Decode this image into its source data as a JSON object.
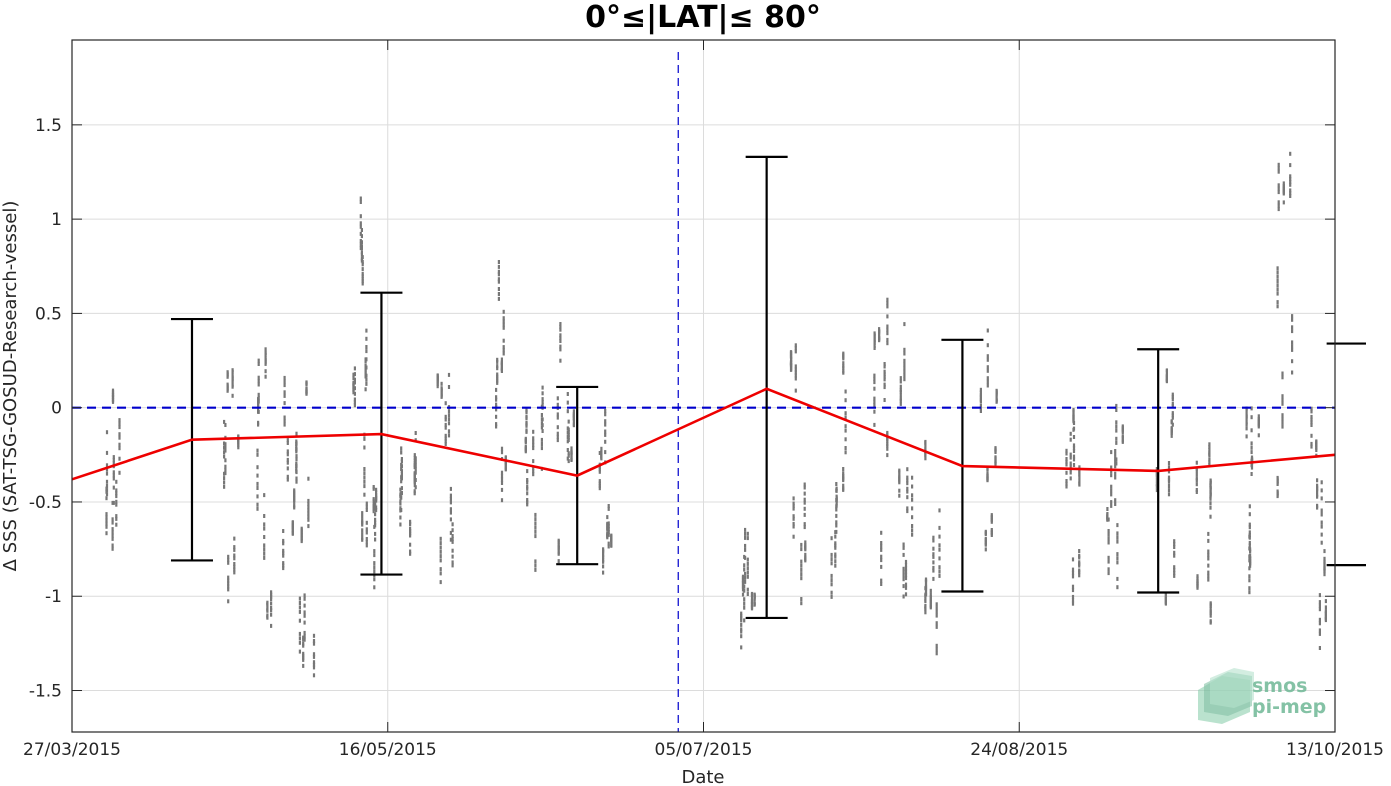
{
  "chart_data": {
    "type": "scatter",
    "title": "0°≤|LAT|≤ 80°",
    "xlabel": "Date",
    "ylabel": "Δ SSS (SAT-TSG-GOSUD-Research-vessel)",
    "x_is_date": true,
    "xlim": [
      "2015-03-27",
      "2015-10-13"
    ],
    "ylim": [
      -1.72,
      1.95
    ],
    "x_ticks": [
      "2015-03-27",
      "2015-05-16",
      "2015-07-05",
      "2015-08-24",
      "2015-10-13"
    ],
    "x_tick_labels": [
      "27/03/2015",
      "16/05/2015",
      "05/07/2015",
      "24/08/2015",
      "13/10/2015"
    ],
    "y_ticks": [
      -1.5,
      -1,
      -0.5,
      0,
      0.5,
      1,
      1.5
    ],
    "y_tick_labels": [
      "-1.5",
      "-1",
      "-0.5",
      "0",
      "0.5",
      "1",
      "1.5"
    ],
    "grid": true,
    "zero_line": {
      "y": 0,
      "color": "#0000cc",
      "style": "dashed"
    },
    "vertical_marker": {
      "x": "2015-07-01",
      "color": "#0000cc",
      "style": "dashed"
    },
    "mean_line": {
      "color": "#ee0000",
      "x": [
        "2015-03-27",
        "2015-04-15",
        "2015-05-15",
        "2015-06-15",
        "2015-07-15",
        "2015-08-15",
        "2015-09-15",
        "2015-10-13"
      ],
      "y": [
        -0.38,
        -0.17,
        -0.14,
        -0.36,
        0.1,
        -0.31,
        -0.335,
        -0.25
      ]
    },
    "error_bars": {
      "color": "#000000",
      "x": [
        "2015-04-15",
        "2015-05-15",
        "2015-06-15",
        "2015-07-15",
        "2015-08-15",
        "2015-09-15",
        "2015-10-15"
      ],
      "low": [
        -0.81,
        -0.885,
        -0.83,
        -1.115,
        -0.975,
        -0.98,
        -0.835
      ],
      "high": [
        0.47,
        0.61,
        0.11,
        1.33,
        0.36,
        0.31,
        0.34
      ]
    },
    "scatter": {
      "color": "#777777",
      "clusters": [
        {
          "x": "2015-04-02",
          "center": -0.15,
          "spread": 0.55
        },
        {
          "x": "2015-04-21",
          "center": -0.3,
          "spread": 0.6
        },
        {
          "x": "2015-04-26",
          "center": -0.35,
          "spread": 0.75
        },
        {
          "x": "2015-04-30",
          "center": -0.5,
          "spread": 0.8
        },
        {
          "x": "2015-05-03",
          "center": -0.6,
          "spread": 0.85
        },
        {
          "x": "2015-05-11",
          "center": 0.2,
          "spread": 0.9
        },
        {
          "x": "2015-05-13",
          "center": -0.1,
          "spread": 0.7
        },
        {
          "x": "2015-05-19",
          "center": -0.55,
          "spread": 0.55
        },
        {
          "x": "2015-05-25",
          "center": -0.3,
          "spread": 0.6
        },
        {
          "x": "2015-06-03",
          "center": 0.1,
          "spread": 0.75
        },
        {
          "x": "2015-06-08",
          "center": -0.45,
          "spread": 0.5
        },
        {
          "x": "2015-06-13",
          "center": -0.2,
          "spread": 0.6
        },
        {
          "x": "2015-06-19",
          "center": -0.55,
          "spread": 0.45
        },
        {
          "x": "2015-07-12",
          "center": -0.9,
          "spread": 0.35
        },
        {
          "x": "2015-07-20",
          "center": -0.2,
          "spread": 0.8
        },
        {
          "x": "2015-07-26",
          "center": -0.3,
          "spread": 0.55
        },
        {
          "x": "2015-08-02",
          "center": -0.1,
          "spread": 0.7
        },
        {
          "x": "2015-08-06",
          "center": -0.3,
          "spread": 0.75
        },
        {
          "x": "2015-08-10",
          "center": -0.45,
          "spread": 0.7
        },
        {
          "x": "2015-08-19",
          "center": -0.2,
          "spread": 0.5
        },
        {
          "x": "2015-09-01",
          "center": -0.45,
          "spread": 0.45
        },
        {
          "x": "2015-09-08",
          "center": -0.55,
          "spread": 0.45
        },
        {
          "x": "2015-09-16",
          "center": -0.4,
          "spread": 0.65
        },
        {
          "x": "2015-09-22",
          "center": -0.65,
          "spread": 0.55
        },
        {
          "x": "2015-09-30",
          "center": -0.5,
          "spread": 0.6
        },
        {
          "x": "2015-10-05",
          "center": 0.5,
          "spread": 0.9
        },
        {
          "x": "2015-10-10",
          "center": -0.6,
          "spread": 0.6
        }
      ]
    }
  },
  "logo": {
    "line1": "smos",
    "line2": "pi-mep",
    "color": "#6fb896"
  }
}
